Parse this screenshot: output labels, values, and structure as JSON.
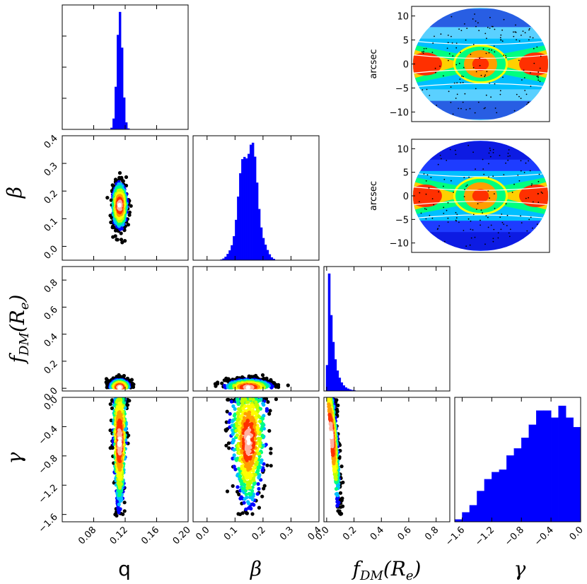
{
  "chart_data": {
    "type": "corner",
    "title": "",
    "parameters": [
      {
        "key": "q",
        "label": "q",
        "axis_range": [
          0.04,
          0.2
        ],
        "ticks": [
          0.08,
          0.12,
          0.16,
          0.2
        ],
        "tick_labels": [
          "0.08",
          "0.12",
          "0.16",
          "0.20"
        ]
      },
      {
        "key": "beta",
        "label": "β",
        "axis_range": [
          -0.05,
          0.4
        ],
        "ticks": [
          0.0,
          0.1,
          0.2,
          0.3,
          0.4
        ],
        "tick_labels": [
          "0.0",
          "0.1",
          "0.2",
          "0.3",
          "0.4"
        ]
      },
      {
        "key": "fdm",
        "label": "fDM(Re)",
        "label_main": "f",
        "label_sub": "DM",
        "label_arg": "(R",
        "label_arg_sub": "e",
        "label_close": ")",
        "axis_range": [
          -0.02,
          0.9
        ],
        "ticks": [
          0.0,
          0.2,
          0.4,
          0.6,
          0.8
        ],
        "tick_labels": [
          "0.0",
          "0.2",
          "0.4",
          "0.6",
          "0.8"
        ]
      },
      {
        "key": "gamma",
        "label": "γ",
        "axis_range": [
          -1.7,
          0.0
        ],
        "ticks": [
          -1.6,
          -1.2,
          -0.8,
          -0.4,
          0.0
        ],
        "tick_labels": [
          "−1.6",
          "−1.2",
          "−0.8",
          "−0.4",
          "0.0"
        ]
      }
    ],
    "histograms": {
      "q": {
        "color": "#0000ff",
        "mean": 0.113,
        "std": 0.0035
      },
      "beta": {
        "color": "#0000ff",
        "mean": 0.148,
        "std": 0.03
      },
      "fdm": {
        "color": "#0000ff",
        "peak": 0.015,
        "scale": 0.035
      },
      "gamma": {
        "color": "#0000ff",
        "bin_edges": [
          -1.7,
          -1.6,
          -1.5,
          -1.4,
          -1.3,
          -1.2,
          -1.1,
          -1.0,
          -0.9,
          -0.8,
          -0.7,
          -0.6,
          -0.5,
          -0.4,
          -0.3,
          -0.2,
          -0.1,
          0.0
        ],
        "counts": [
          2,
          8,
          14,
          26,
          36,
          42,
          44,
          56,
          62,
          71,
          82,
          94,
          94,
          88,
          98,
          88,
          80
        ]
      }
    },
    "scatter_2d": [
      {
        "x": "q",
        "y": "beta",
        "center": [
          0.113,
          0.148
        ],
        "spread": [
          0.0045,
          0.04
        ]
      },
      {
        "x": "q",
        "y": "fdm",
        "center": [
          0.113,
          0.03
        ],
        "spread": [
          0.006,
          0.04
        ]
      },
      {
        "x": "beta",
        "y": "fdm",
        "center": [
          0.148,
          0.03
        ],
        "spread": [
          0.04,
          0.04
        ]
      },
      {
        "x": "q",
        "y": "gamma",
        "center": [
          0.113,
          -0.6
        ],
        "spread": [
          0.004,
          0.45
        ]
      },
      {
        "x": "beta",
        "y": "gamma",
        "center": [
          0.148,
          -0.6
        ],
        "spread": [
          0.03,
          0.45
        ]
      },
      {
        "x": "fdm",
        "y": "gamma",
        "center": [
          0.04,
          -0.5
        ],
        "spread": [
          0.03,
          0.45
        ]
      }
    ],
    "colormap": [
      "#000000",
      "#00007f",
      "#0000ff",
      "#00bfff",
      "#00ff7f",
      "#bfff00",
      "#ffff00",
      "#ff9f00",
      "#ff3000",
      "#ffb0a0",
      "#ffffff"
    ],
    "kinematic_maps": [
      {
        "ylabel": "arcsec",
        "yticks": [
          10,
          5,
          0,
          -5,
          -10
        ],
        "ytick_labels": [
          "10",
          "5",
          "0",
          "−5",
          "−10"
        ],
        "yrange": [
          -12,
          12
        ]
      },
      {
        "ylabel": "arcsec",
        "yticks": [
          10,
          5,
          0,
          -5,
          -10
        ],
        "ytick_labels": [
          "10",
          "5",
          "0",
          "−5",
          "−10"
        ],
        "yrange": [
          -12,
          12
        ]
      }
    ]
  }
}
